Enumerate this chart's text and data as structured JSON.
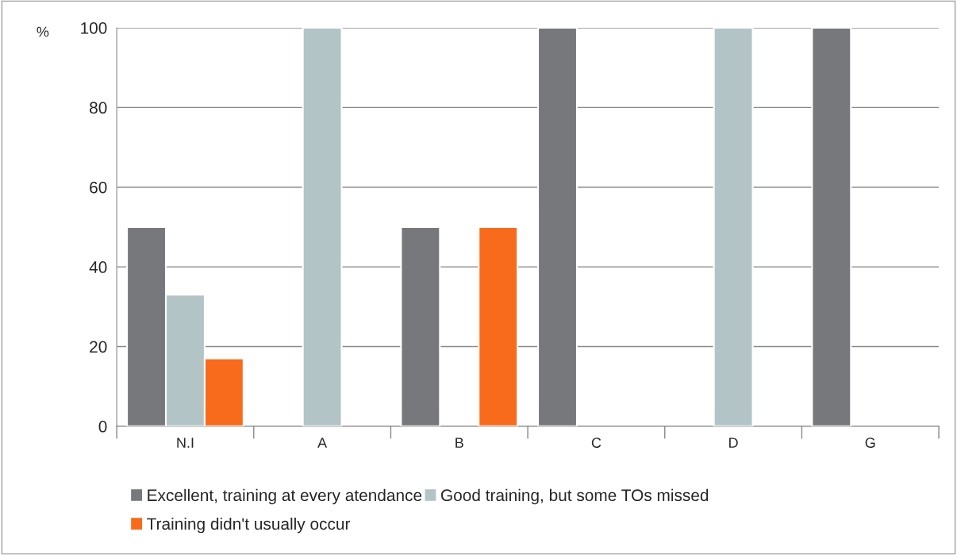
{
  "chart_data": {
    "type": "bar",
    "ylabel": "%",
    "categories": [
      "N.I",
      "A",
      "B",
      "C",
      "D",
      "G"
    ],
    "series": [
      {
        "name": "Excellent, training at every atendance",
        "color": "#77787b",
        "values": [
          50,
          null,
          50,
          100,
          null,
          100
        ]
      },
      {
        "name": "Good training, but some TOs missed",
        "color": "#b3c4c7",
        "values": [
          33,
          100,
          null,
          null,
          100,
          null
        ]
      },
      {
        "name": "Training didn't usually occur",
        "color": "#f96b1c",
        "values": [
          17,
          null,
          50,
          null,
          null,
          null
        ]
      }
    ],
    "ylim": [
      0,
      100
    ],
    "yticks": [
      0,
      20,
      40,
      60,
      80,
      100
    ],
    "grid": "y",
    "legend": "bottom"
  }
}
